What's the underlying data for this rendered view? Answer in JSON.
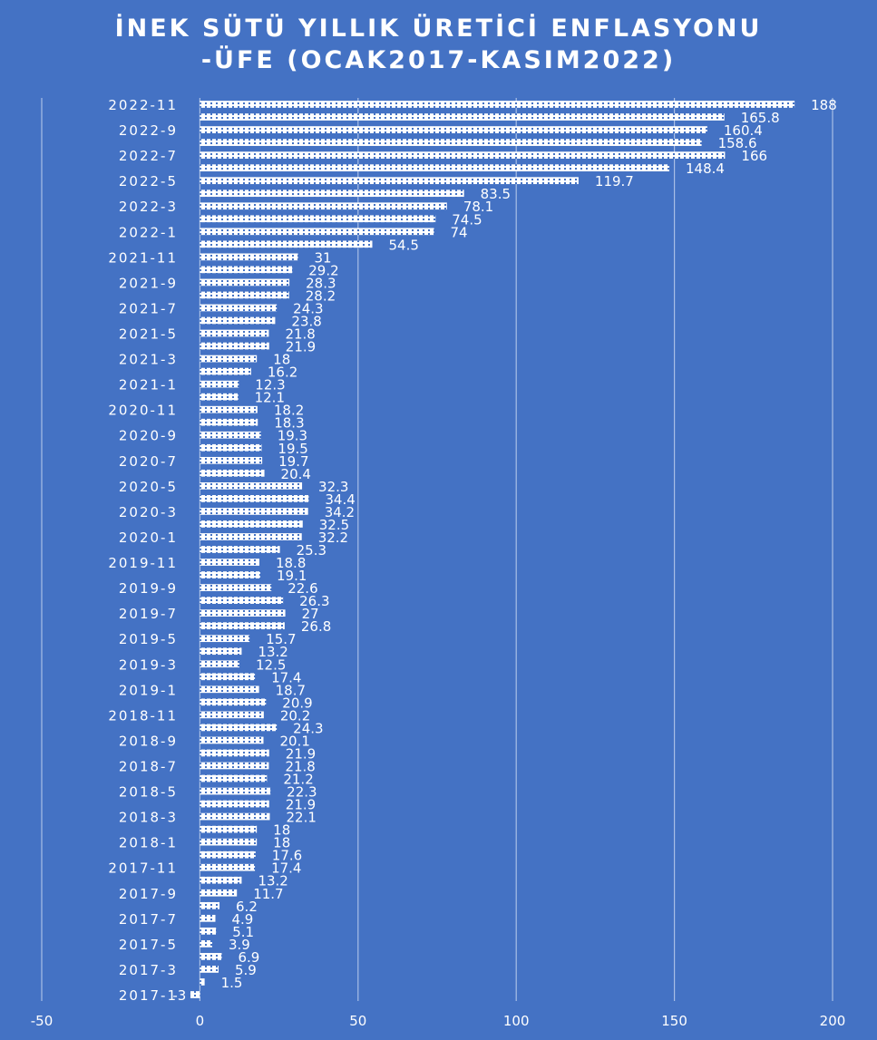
{
  "chart_data": {
    "type": "bar",
    "orientation": "horizontal",
    "title_lines": [
      "İNEK SÜTÜ YILLIK ÜRETİCİ ENFLASYONU",
      "-ÜFE (OCAK2017-KASIM2022)"
    ],
    "xlim": [
      -50,
      200
    ],
    "x_ticks": [
      -50,
      0,
      50,
      100,
      150,
      200
    ],
    "grid": "vertical",
    "legend": "none",
    "bar_color": "#ffffff",
    "category_labels_shown": [
      "2017-1",
      "2017-3",
      "2017-5",
      "2017-7",
      "2017-9",
      "2017-11",
      "2018-1",
      "2018-3",
      "2018-5",
      "2018-7",
      "2018-9",
      "2018-11",
      "2019-1",
      "2019-3",
      "2019-5",
      "2019-7",
      "2019-9",
      "2019-11",
      "2020-1",
      "2020-3",
      "2020-5",
      "2020-7",
      "2020-9",
      "2020-11",
      "2021-1",
      "2021-3",
      "2021-5",
      "2021-7",
      "2021-9",
      "2021-11",
      "2022-1",
      "2022-3",
      "2022-5",
      "2022-7",
      "2022-9",
      "2022-11"
    ],
    "categories": [
      "2017-1",
      "2017-2",
      "2017-3",
      "2017-4",
      "2017-5",
      "2017-6",
      "2017-7",
      "2017-8",
      "2017-9",
      "2017-10",
      "2017-11",
      "2017-12",
      "2018-1",
      "2018-2",
      "2018-3",
      "2018-4",
      "2018-5",
      "2018-6",
      "2018-7",
      "2018-8",
      "2018-9",
      "2018-10",
      "2018-11",
      "2018-12",
      "2019-1",
      "2019-2",
      "2019-3",
      "2019-4",
      "2019-5",
      "2019-6",
      "2019-7",
      "2019-8",
      "2019-9",
      "2019-10",
      "2019-11",
      "2019-12",
      "2020-1",
      "2020-2",
      "2020-3",
      "2020-4",
      "2020-5",
      "2020-6",
      "2020-7",
      "2020-8",
      "2020-9",
      "2020-10",
      "2020-11",
      "2020-12",
      "2021-1",
      "2021-2",
      "2021-3",
      "2021-4",
      "2021-5",
      "2021-6",
      "2021-7",
      "2021-8",
      "2021-9",
      "2021-10",
      "2021-11",
      "2021-12",
      "2022-1",
      "2022-2",
      "2022-3",
      "2022-4",
      "2022-5",
      "2022-6",
      "2022-7",
      "2022-8",
      "2022-9",
      "2022-10",
      "2022-11"
    ],
    "values": [
      -3,
      1.5,
      5.9,
      6.9,
      3.9,
      5.1,
      4.9,
      6.2,
      11.7,
      13.2,
      17.4,
      17.6,
      18,
      18,
      22.1,
      21.9,
      22.3,
      21.2,
      21.8,
      21.9,
      20.1,
      24.3,
      20.2,
      20.9,
      18.7,
      17.4,
      12.5,
      13.2,
      15.7,
      26.8,
      27,
      26.3,
      22.6,
      19.1,
      18.8,
      25.3,
      32.2,
      32.5,
      34.2,
      34.4,
      32.3,
      20.4,
      19.7,
      19.5,
      19.3,
      18.3,
      18.2,
      12.1,
      12.3,
      16.2,
      18,
      21.9,
      21.8,
      23.8,
      24.3,
      28.2,
      28.3,
      29.2,
      31,
      54.5,
      74,
      74.5,
      78.1,
      83.5,
      119.7,
      148.4,
      166,
      158.6,
      160.4,
      165.8,
      188
    ]
  }
}
